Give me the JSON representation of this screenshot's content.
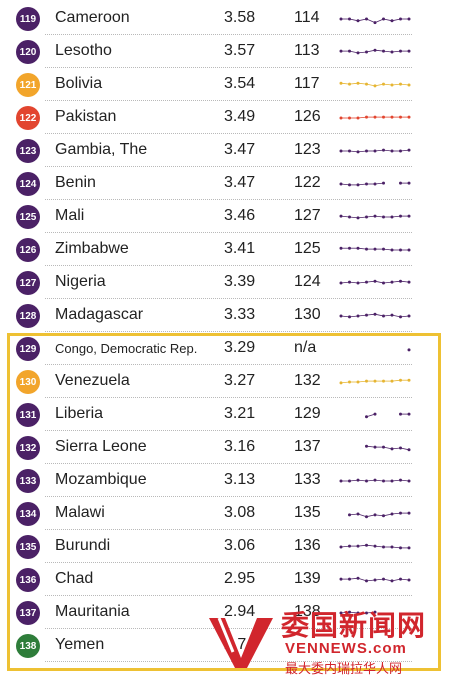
{
  "colors": {
    "purple": "#4b2166",
    "orange": "#f2a52b",
    "red": "#e2452f",
    "green": "#2e7d3a",
    "highlight_border": "#eec133",
    "watermark": "#d1262d"
  },
  "rows": [
    {
      "badge": "119",
      "country": "Cameroon",
      "score": "3.58",
      "rank": "114",
      "badge_color": "#4b2166",
      "spark_color": "#4b2166",
      "trend": [
        0.5,
        0.5,
        0.4,
        0.5,
        0.3,
        0.5,
        0.4,
        0.5,
        0.5
      ]
    },
    {
      "badge": "120",
      "country": "Lesotho",
      "score": "3.57",
      "rank": "113",
      "badge_color": "#4b2166",
      "spark_color": "#4b2166",
      "trend": [
        0.55,
        0.55,
        0.45,
        0.5,
        0.6,
        0.55,
        0.5,
        0.55,
        0.55
      ]
    },
    {
      "badge": "121",
      "country": "Bolivia",
      "score": "3.54",
      "rank": "117",
      "badge_color": "#f2a52b",
      "spark_color": "#e6b532",
      "trend": [
        0.6,
        0.55,
        0.6,
        0.55,
        0.45,
        0.55,
        0.5,
        0.55,
        0.5
      ]
    },
    {
      "badge": "122",
      "country": "Pakistan",
      "score": "3.49",
      "rank": "126",
      "badge_color": "#e2452f",
      "spark_color": "#e2452f",
      "trend": [
        0.5,
        0.5,
        0.5,
        0.55,
        0.55,
        0.55,
        0.55,
        0.55,
        0.55
      ]
    },
    {
      "badge": "123",
      "country": "Gambia, The",
      "score": "3.47",
      "rank": "123",
      "badge_color": "#4b2166",
      "spark_color": "#4b2166",
      "trend": [
        0.5,
        0.5,
        0.45,
        0.5,
        0.5,
        0.55,
        0.5,
        0.5,
        0.55
      ]
    },
    {
      "badge": "124",
      "country": "Benin",
      "score": "3.47",
      "rank": "122",
      "badge_color": "#4b2166",
      "spark_color": "#4b2166",
      "trend": [
        0.5,
        0.45,
        0.45,
        0.5,
        0.5,
        0.55,
        null,
        0.55,
        0.55
      ]
    },
    {
      "badge": "125",
      "country": "Mali",
      "score": "3.46",
      "rank": "127",
      "badge_color": "#4b2166",
      "spark_color": "#4b2166",
      "trend": [
        0.55,
        0.5,
        0.45,
        0.5,
        0.55,
        0.5,
        0.5,
        0.55,
        0.55
      ]
    },
    {
      "badge": "126",
      "country": "Zimbabwe",
      "score": "3.41",
      "rank": "125",
      "badge_color": "#4b2166",
      "spark_color": "#4b2166",
      "trend": [
        0.6,
        0.6,
        0.6,
        0.55,
        0.55,
        0.55,
        0.5,
        0.5,
        0.5
      ]
    },
    {
      "badge": "127",
      "country": "Nigeria",
      "score": "3.39",
      "rank": "124",
      "badge_color": "#4b2166",
      "spark_color": "#4b2166",
      "trend": [
        0.5,
        0.55,
        0.5,
        0.55,
        0.6,
        0.5,
        0.55,
        0.6,
        0.55
      ]
    },
    {
      "badge": "128",
      "country": "Madagascar",
      "score": "3.33",
      "rank": "130",
      "badge_color": "#4b2166",
      "spark_color": "#4b2166",
      "trend": [
        0.5,
        0.45,
        0.5,
        0.55,
        0.6,
        0.5,
        0.55,
        0.45,
        0.5
      ]
    },
    {
      "badge": "129",
      "country": "Congo, Democratic Rep.",
      "score": "3.29",
      "rank": "n/a",
      "badge_color": "#4b2166",
      "spark_color": "#4b2166",
      "small": true,
      "trend": [
        null,
        null,
        null,
        null,
        null,
        null,
        null,
        null,
        0.45
      ]
    },
    {
      "badge": "130",
      "country": "Venezuela",
      "score": "3.27",
      "rank": "132",
      "badge_color": "#f2a52b",
      "spark_color": "#e6b532",
      "trend": [
        0.45,
        0.5,
        0.5,
        0.55,
        0.55,
        0.55,
        0.55,
        0.6,
        0.6
      ]
    },
    {
      "badge": "131",
      "country": "Liberia",
      "score": "3.21",
      "rank": "129",
      "badge_color": "#4b2166",
      "spark_color": "#4b2166",
      "trend": [
        null,
        null,
        null,
        0.4,
        0.55,
        null,
        null,
        0.55,
        0.55
      ]
    },
    {
      "badge": "132",
      "country": "Sierra Leone",
      "score": "3.16",
      "rank": "137",
      "badge_color": "#4b2166",
      "spark_color": "#4b2166",
      "trend": [
        null,
        null,
        null,
        0.6,
        0.55,
        0.55,
        0.45,
        0.5,
        0.4
      ]
    },
    {
      "badge": "133",
      "country": "Mozambique",
      "score": "3.13",
      "rank": "133",
      "badge_color": "#4b2166",
      "spark_color": "#4b2166",
      "trend": [
        0.5,
        0.5,
        0.55,
        0.5,
        0.55,
        0.5,
        0.5,
        0.55,
        0.5
      ]
    },
    {
      "badge": "134",
      "country": "Malawi",
      "score": "3.08",
      "rank": "135",
      "badge_color": "#4b2166",
      "spark_color": "#4b2166",
      "trend": [
        null,
        0.45,
        0.5,
        0.35,
        0.45,
        0.4,
        0.5,
        0.55,
        0.55
      ]
    },
    {
      "badge": "135",
      "country": "Burundi",
      "score": "3.06",
      "rank": "136",
      "badge_color": "#4b2166",
      "spark_color": "#4b2166",
      "trend": [
        0.5,
        0.55,
        0.55,
        0.6,
        0.55,
        0.5,
        0.5,
        0.45,
        0.45
      ]
    },
    {
      "badge": "136",
      "country": "Chad",
      "score": "2.95",
      "rank": "139",
      "badge_color": "#4b2166",
      "spark_color": "#4b2166",
      "trend": [
        0.55,
        0.55,
        0.6,
        0.45,
        0.5,
        0.55,
        0.45,
        0.55,
        0.5
      ]
    },
    {
      "badge": "137",
      "country": "Mauritania",
      "score": "2.94",
      "rank": "138",
      "badge_color": "#4b2166",
      "spark_color": "#4b2166",
      "trend": [
        0.5,
        0.55,
        0.5,
        0.5,
        0.55,
        null,
        null,
        null,
        null
      ]
    },
    {
      "badge": "138",
      "country": "Yemen",
      "score": "2.74",
      "rank": "",
      "badge_color": "#2e7d3a",
      "spark_color": "#2e7d3a",
      "trend": [
        null,
        null,
        null,
        null,
        null,
        null,
        null,
        null,
        null
      ]
    }
  ],
  "watermark": {
    "chinese": "委国新闻网",
    "domain": "VENNEWS.com",
    "tagline": "最大委内瑞拉华人网"
  }
}
